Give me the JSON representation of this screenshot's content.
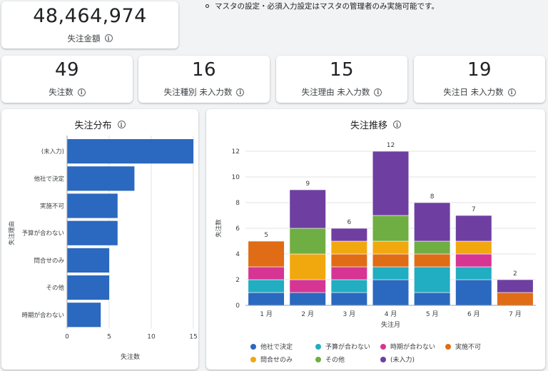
{
  "note": "マスタの設定・必須入力設定はマスタの管理者のみ実施可能です。",
  "kpis": {
    "amount": {
      "value": "48,464,974",
      "label": "失注金額"
    },
    "count": {
      "value": "49",
      "label": "失注数"
    },
    "type_missing": {
      "value": "16",
      "label": "失注種別 未入力数"
    },
    "reason_missing": {
      "value": "15",
      "label": "失注理由 未入力数"
    },
    "date_missing": {
      "value": "19",
      "label": "失注日 未入力数"
    }
  },
  "info_glyph": "i",
  "chart_data": [
    {
      "type": "bar",
      "orientation": "horizontal",
      "title": "失注分布",
      "xlabel": "失注数",
      "ylabel": "失注理由",
      "categories": [
        "(未入力)",
        "他社で決定",
        "実施不可",
        "予算が合わない",
        "問合せのみ",
        "その他",
        "時期が合わない"
      ],
      "values": [
        15,
        8,
        6,
        6,
        5,
        5,
        4
      ],
      "xlim": [
        0,
        15
      ],
      "xticks": [
        0,
        5,
        10,
        15
      ],
      "color": "#2b68bf"
    },
    {
      "type": "bar",
      "stacked": true,
      "title": "失注推移",
      "xlabel": "失注月",
      "ylabel": "失注数",
      "categories": [
        "1 月",
        "2 月",
        "3 月",
        "4 月",
        "5 月",
        "6 月",
        "7 月"
      ],
      "ylim": [
        0,
        12
      ],
      "yticks": [
        0,
        2,
        4,
        6,
        8,
        10,
        12
      ],
      "totals": [
        5,
        9,
        6,
        12,
        8,
        7,
        2
      ],
      "series": [
        {
          "name": "他社で決定",
          "color": "#2b68bf",
          "values": [
            1,
            1,
            1,
            2,
            1,
            2,
            0
          ]
        },
        {
          "name": "予算が合わない",
          "color": "#21adc2",
          "values": [
            1,
            0,
            1,
            1,
            2,
            1,
            0
          ]
        },
        {
          "name": "時期が合わない",
          "color": "#d63594",
          "values": [
            1,
            1,
            1,
            0,
            0,
            1,
            0
          ]
        },
        {
          "name": "実施不可",
          "color": "#e06c16",
          "values": [
            2,
            0,
            1,
            1,
            1,
            0,
            1
          ]
        },
        {
          "name": "問合せのみ",
          "color": "#f1a80f",
          "values": [
            0,
            2,
            1,
            1,
            0,
            1,
            0
          ]
        },
        {
          "name": "その他",
          "color": "#6fae43",
          "values": [
            0,
            2,
            0,
            2,
            1,
            0,
            0
          ]
        },
        {
          "name": "(未入力)",
          "color": "#6e3fa1",
          "values": [
            0,
            3,
            1,
            5,
            3,
            2,
            1
          ]
        }
      ],
      "legend_position": "bottom"
    }
  ]
}
